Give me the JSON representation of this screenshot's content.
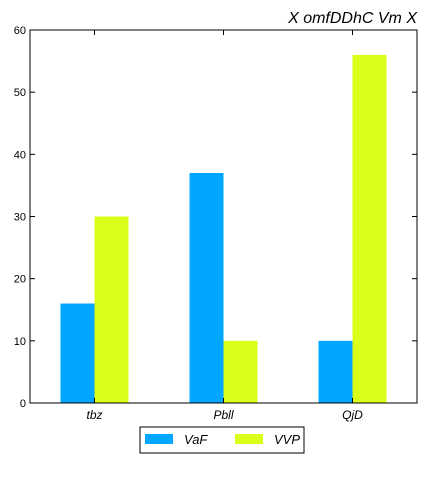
{
  "chart_data": {
    "type": "bar",
    "title": "X omfDDhC Vm X",
    "xlabel": "",
    "ylabel": "",
    "categories": [
      "tbz",
      "Pbll",
      "QjD"
    ],
    "series": [
      {
        "name": "VaF",
        "values": [
          16,
          37,
          10
        ],
        "color": "#00a6ff"
      },
      {
        "name": "VVP",
        "values": [
          30,
          10,
          56
        ],
        "color": "#dcff1a"
      }
    ],
    "ylim": [
      0,
      60
    ],
    "yticks": [
      0,
      10,
      20,
      30,
      40,
      50,
      60
    ],
    "grid": false,
    "legend_position": "bottom-center"
  }
}
